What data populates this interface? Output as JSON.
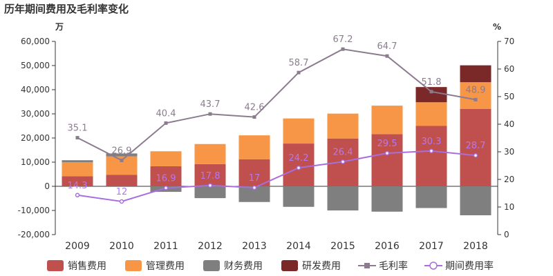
{
  "title": "历年期间费用及毛利率变化",
  "chart_data": {
    "type": "bar",
    "title": "历年期间费用及毛利率变化",
    "left_unit": "万",
    "right_unit": "%",
    "categories": [
      "2009",
      "2010",
      "2011",
      "2012",
      "2013",
      "2014",
      "2015",
      "2016",
      "2017",
      "2018"
    ],
    "left_axis": {
      "ylim": [
        -20000,
        60000
      ],
      "ticks": [
        "-20,000",
        "-10,000",
        "0",
        "10,000",
        "20,000",
        "30,000",
        "40,000",
        "50,000",
        "60,000"
      ]
    },
    "right_axis": {
      "ylim": [
        0,
        70
      ],
      "ticks": [
        "0",
        "10",
        "20",
        "30",
        "40",
        "50",
        "60",
        "70"
      ]
    },
    "bar_series": [
      {
        "name": "销售费用",
        "color": "#c0504d",
        "values": [
          4200,
          4800,
          8300,
          9200,
          11200,
          17700,
          19800,
          21600,
          25000,
          32000
        ]
      },
      {
        "name": "管理费用",
        "color": "#f79646",
        "values": [
          5800,
          7600,
          6200,
          8300,
          9900,
          10400,
          10300,
          11800,
          9800,
          11100
        ]
      },
      {
        "name": "财务费用",
        "color": "#7f7f7f",
        "values": [
          800,
          1200,
          -2300,
          -4900,
          -6500,
          -8500,
          -10000,
          -10500,
          -9000,
          -12000
        ]
      },
      {
        "name": "研发费用",
        "color": "#7a2828",
        "values": [
          0,
          0,
          0,
          0,
          0,
          0,
          0,
          0,
          6300,
          7000
        ]
      }
    ],
    "line_series": [
      {
        "name": "毛利率",
        "color": "#8c7b8f",
        "marker": "square",
        "values": [
          35.1,
          26.9,
          40.4,
          43.7,
          42.6,
          58.7,
          67.2,
          64.7,
          51.8,
          48.9
        ],
        "labels": [
          "35.1",
          "26.9",
          "40.4",
          "43.7",
          "42.6",
          "58.7",
          "67.2",
          "64.7",
          "51.8",
          "48.9"
        ]
      },
      {
        "name": "期间费用率",
        "color": "#a86ee0",
        "marker": "circle",
        "values": [
          14.3,
          12,
          16.9,
          17.8,
          17,
          24.2,
          26.4,
          29.5,
          30.3,
          28.7
        ],
        "labels": [
          "14.3",
          "12",
          "16.9",
          "17.8",
          "17",
          "24.2",
          "26.4",
          "29.5",
          "30.3",
          "28.7"
        ]
      }
    ],
    "legend_position": "bottom",
    "grid": false
  }
}
